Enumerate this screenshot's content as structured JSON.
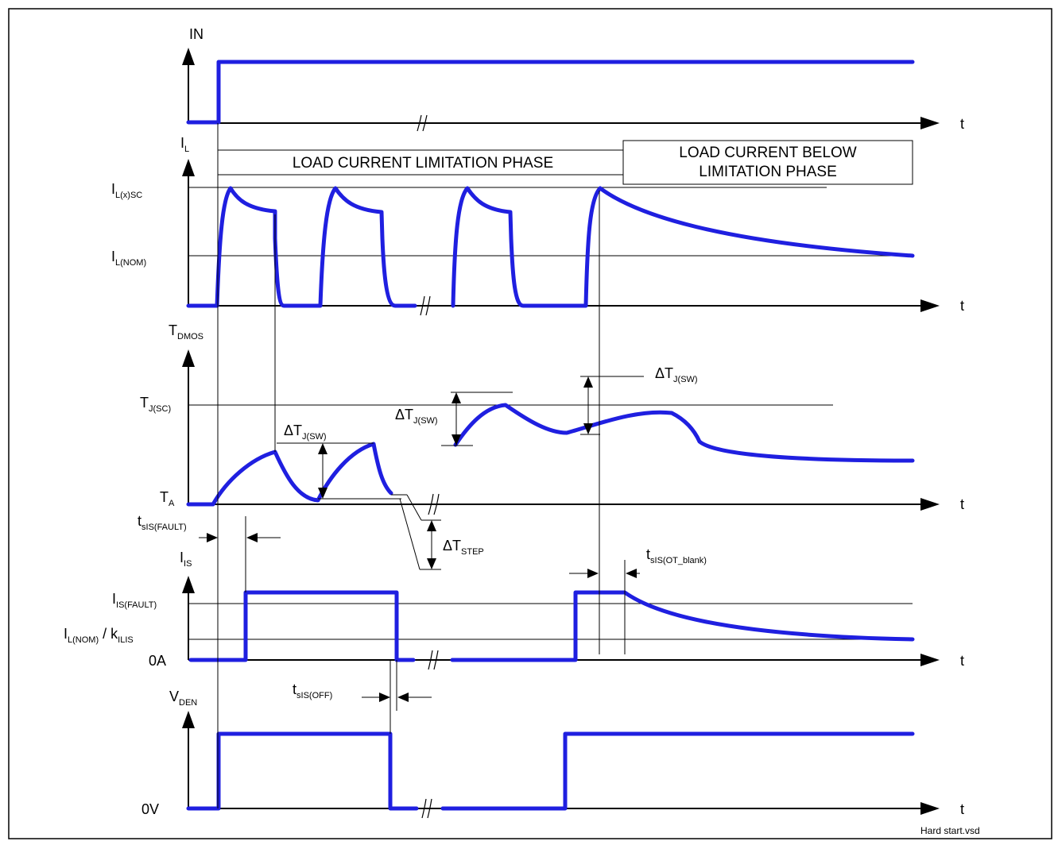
{
  "axis_t": "t",
  "in": {
    "label": "IN"
  },
  "il": {
    "label": "I",
    "label_sub": "L",
    "sc": "I",
    "sc_sub": "L(x)SC",
    "nom": "I",
    "nom_sub": "L(NOM)"
  },
  "phases": {
    "limitation": "LOAD CURRENT LIMITATION PHASE",
    "below_line1": "LOAD CURRENT BELOW",
    "below_line2": "LIMITATION PHASE"
  },
  "tdmos": {
    "label": "T",
    "label_sub": "DMOS",
    "tjsc": "T",
    "tjsc_sub": "J(SC)",
    "ta": "T",
    "ta_sub": "A",
    "delta_tj": "ΔT",
    "delta_tj_sub": "J(SW)",
    "delta_tstep": "ΔT",
    "delta_tstep_sub": "STEP"
  },
  "is": {
    "label": "I",
    "label_sub": "IS",
    "fault": "I",
    "fault_sub": "IS(FAULT)",
    "nom_ratio_a": "I",
    "nom_ratio_a_sub": "L(NOM)",
    "nom_ratio_b": " / k",
    "nom_ratio_b_sub": "ILIS",
    "zero": "0A",
    "t_fault": "t",
    "t_fault_sub": "sIS(FAULT)",
    "t_off": "t",
    "t_off_sub": "sIS(OFF)",
    "t_ot": "t",
    "t_ot_sub": "sIS(OT_blank)"
  },
  "vden": {
    "label": "V",
    "label_sub": "DEN",
    "zero": "0V"
  },
  "footer": "Hard start.vsd"
}
